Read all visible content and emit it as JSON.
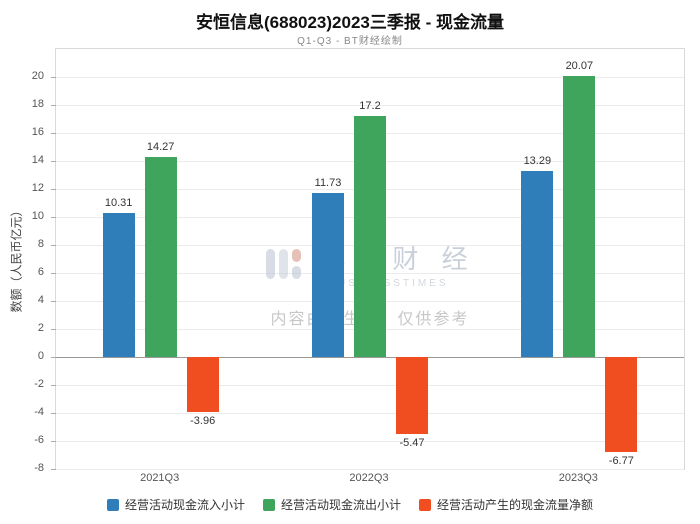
{
  "header": {
    "title": "安恒信息(688023)2023三季报 - 现金流量",
    "subtitle": "Q1-Q3 - BT财经绘制"
  },
  "watermark": {
    "brand": "BT 财 经",
    "brand_sub": "BUSINESSTIMES",
    "notice": "内容由AI生成，仅供参考"
  },
  "chart_data": {
    "type": "bar",
    "title": "安恒信息(688023)2023三季报 - 现金流量",
    "xlabel": "",
    "ylabel": "数额（人民币亿元）",
    "categories": [
      "2021Q3",
      "2022Q3",
      "2023Q3"
    ],
    "series": [
      {
        "name": "经营活动现金流入小计",
        "color": "#2f7eb9",
        "values": [
          10.31,
          11.73,
          13.29
        ]
      },
      {
        "name": "经营活动现金流出小计",
        "color": "#3fa45c",
        "values": [
          14.27,
          17.2,
          20.07
        ]
      },
      {
        "name": "经营活动产生的现金流量净额",
        "color": "#f04e21",
        "values": [
          -3.96,
          -5.47,
          -6.77
        ]
      }
    ],
    "ylim": [
      -8,
      22
    ],
    "ytick_step": 2,
    "grid": true,
    "legend_position": "bottom"
  }
}
